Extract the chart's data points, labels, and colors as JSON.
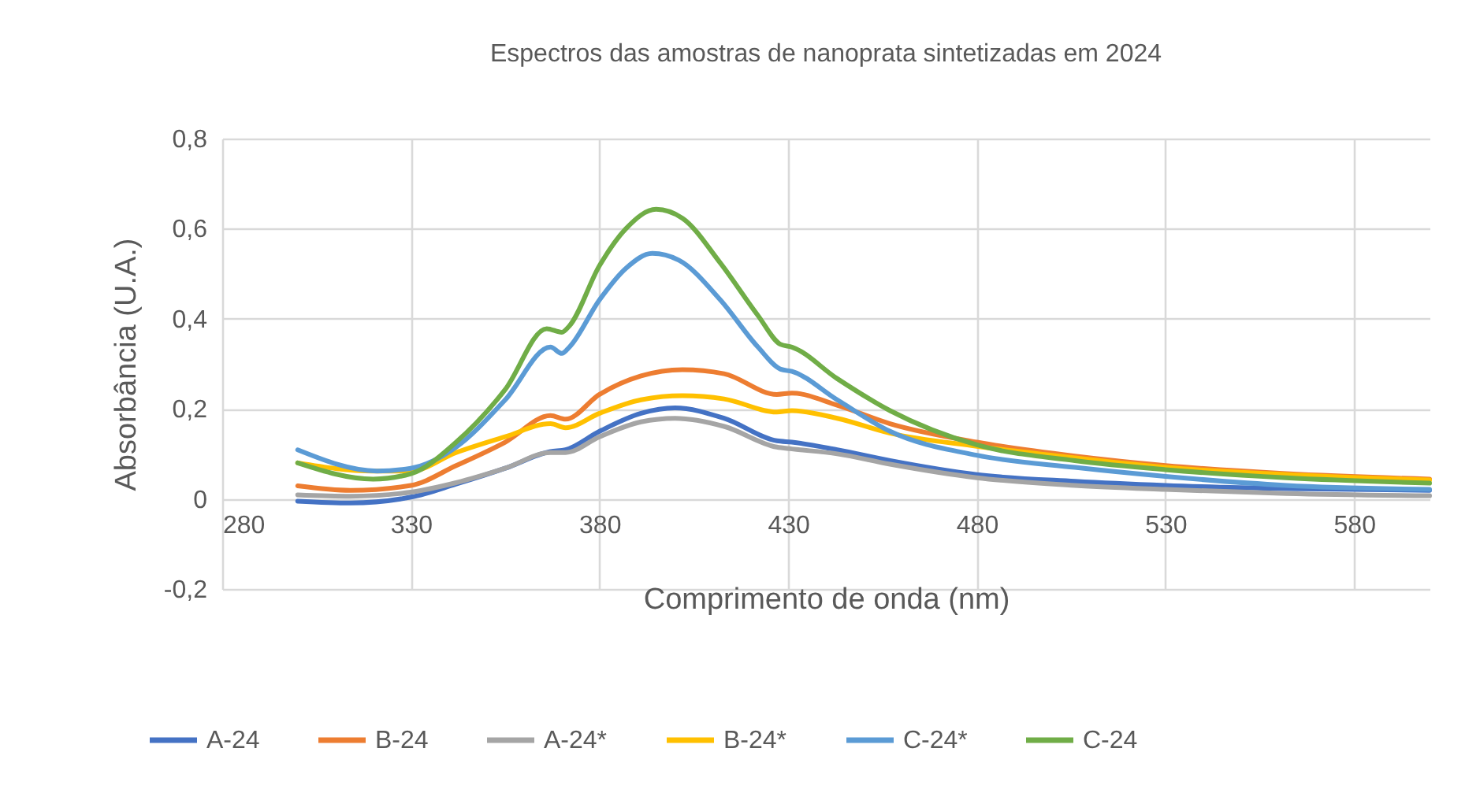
{
  "chart_data": {
    "type": "line",
    "title": "Espectros das amostras de nanoprata sintetizadas em 2024",
    "xlabel": "Comprimento de onda (nm)",
    "ylabel": "Absorbância (U.A.)",
    "xlim": [
      280,
      600
    ],
    "xticks": [
      280,
      330,
      380,
      430,
      480,
      530,
      580
    ],
    "ylim": [
      -0.2,
      0.8
    ],
    "yticks": [
      {
        "value": -0.2,
        "label": "-0,2"
      },
      {
        "value": 0,
        "label": "0"
      },
      {
        "value": 0.2,
        "label": "0,2"
      },
      {
        "value": 0.4,
        "label": "0,4"
      },
      {
        "value": 0.6,
        "label": "0,6"
      },
      {
        "value": 0.8,
        "label": "0,8"
      }
    ],
    "grid": true,
    "legend": "bottom",
    "marker": "none",
    "line_style": "solid",
    "series": [
      {
        "name": "A-24",
        "color": "#4472c4",
        "x": [
          300,
          314,
          330,
          342,
          355,
          367,
          371,
          380,
          391,
          400,
          413,
          427,
          431,
          443,
          457,
          480,
          506,
          530,
          562,
          600
        ],
        "values": [
          -0.005,
          -0.009,
          0.004,
          0.033,
          0.068,
          0.105,
          0.109,
          0.15,
          0.19,
          0.202,
          0.179,
          0.129,
          0.126,
          0.109,
          0.085,
          0.054,
          0.039,
          0.03,
          0.023,
          0.019
        ]
      },
      {
        "name": "B-24",
        "color": "#ed7d31",
        "x": [
          300,
          314,
          330,
          342,
          355,
          367,
          371,
          380,
          391,
          402,
          413,
          427,
          431,
          443,
          457,
          480,
          506,
          530,
          562,
          600
        ],
        "values": [
          0.029,
          0.019,
          0.03,
          0.074,
          0.126,
          0.185,
          0.177,
          0.232,
          0.273,
          0.287,
          0.278,
          0.232,
          0.235,
          0.208,
          0.167,
          0.126,
          0.095,
          0.074,
          0.056,
          0.044
        ]
      },
      {
        "name": "A-24*",
        "color": "#a5a5a5",
        "x": [
          300,
          314,
          330,
          342,
          355,
          367,
          371,
          380,
          391,
          400,
          413,
          427,
          431,
          443,
          457,
          480,
          506,
          530,
          562,
          600
        ],
        "values": [
          0.009,
          0.006,
          0.015,
          0.036,
          0.068,
          0.103,
          0.103,
          0.138,
          0.171,
          0.179,
          0.161,
          0.115,
          0.111,
          0.1,
          0.077,
          0.047,
          0.03,
          0.021,
          0.012,
          0.007
        ]
      },
      {
        "name": "B-24*",
        "color": "#ffc000",
        "x": [
          300,
          320,
          330,
          342,
          355,
          367,
          371,
          380,
          391,
          402,
          413,
          427,
          431,
          443,
          457,
          480,
          506,
          530,
          562,
          600
        ],
        "values": [
          0.08,
          0.062,
          0.062,
          0.103,
          0.138,
          0.167,
          0.158,
          0.19,
          0.22,
          0.229,
          0.222,
          0.193,
          0.196,
          0.179,
          0.146,
          0.117,
          0.091,
          0.07,
          0.054,
          0.042
        ]
      },
      {
        "name": "C-24*",
        "color": "#5b9bd5",
        "x": [
          300,
          321,
          330,
          342,
          355,
          367,
          370,
          372,
          380,
          387,
          394,
          401,
          412,
          422,
          428,
          431,
          443,
          457,
          480,
          506,
          530,
          562,
          600
        ],
        "values": [
          0.109,
          0.062,
          0.068,
          0.115,
          0.22,
          0.337,
          0.323,
          0.337,
          0.442,
          0.512,
          0.545,
          0.53,
          0.442,
          0.337,
          0.288,
          0.283,
          0.22,
          0.15,
          0.097,
          0.07,
          0.05,
          0.03,
          0.021
        ]
      },
      {
        "name": "C-24",
        "color": "#70ad47",
        "x": [
          300,
          320,
          330,
          342,
          355,
          366,
          370,
          372,
          380,
          387,
          395,
          402,
          412,
          422,
          428,
          431,
          443,
          457,
          480,
          506,
          530,
          562,
          600
        ],
        "values": [
          0.08,
          0.044,
          0.056,
          0.126,
          0.243,
          0.378,
          0.37,
          0.384,
          0.518,
          0.6,
          0.643,
          0.623,
          0.524,
          0.407,
          0.343,
          0.337,
          0.267,
          0.196,
          0.12,
          0.085,
          0.065,
          0.047,
          0.035
        ]
      }
    ]
  }
}
